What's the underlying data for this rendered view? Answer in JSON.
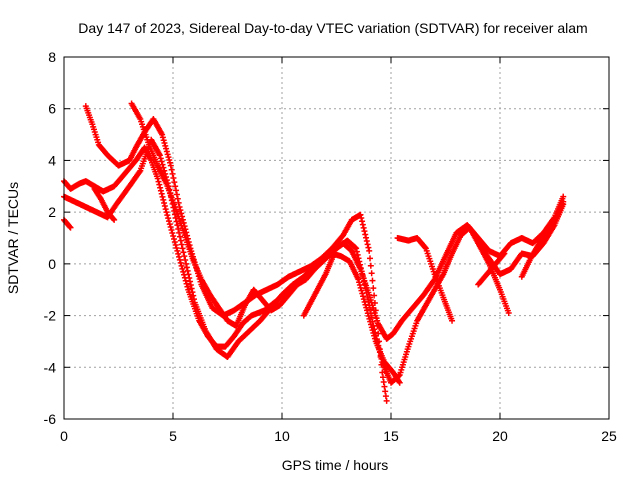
{
  "chart_data": {
    "type": "scatter",
    "title": "Day 147 of 2023, Sidereal Day-to-day VTEC variation (SDTVAR) for receiver alam",
    "xlabel": "GPS time / hours",
    "ylabel": "SDTVAR / TECUs",
    "xlim": [
      0,
      25
    ],
    "ylim": [
      -6,
      8
    ],
    "xticks": [
      0,
      5,
      10,
      15,
      20,
      25
    ],
    "yticks": [
      -6,
      -4,
      -2,
      0,
      2,
      4,
      6,
      8
    ],
    "grid": true,
    "marker": "+",
    "color": "#ff0000",
    "series": [
      {
        "x": [
          0.0,
          0.3,
          0.7,
          1.0,
          1.4,
          1.8,
          2.3,
          2.8,
          3.3,
          3.7,
          4.0,
          4.3,
          4.7,
          5.2,
          5.7,
          6.2,
          6.6,
          7.0,
          7.4,
          7.8,
          8.2,
          8.6,
          9.2,
          9.8,
          10.4,
          11.0,
          11.6,
          12.2,
          12.8,
          13.2,
          13.6,
          14.0,
          14.4,
          14.8,
          15.1,
          15.5,
          16.0,
          16.5,
          17.0,
          17.5,
          18.0,
          18.5,
          19.0,
          19.5,
          20.0,
          20.5,
          21.0,
          21.5,
          22.0,
          22.5,
          22.9
        ],
        "y": [
          3.2,
          2.9,
          3.1,
          3.2,
          3.0,
          2.8,
          3.0,
          3.5,
          4.0,
          4.5,
          4.0,
          3.3,
          2.0,
          0.5,
          -1.0,
          -2.2,
          -2.8,
          -3.2,
          -3.2,
          -2.8,
          -2.3,
          -2.0,
          -1.8,
          -1.4,
          -0.9,
          -0.5,
          0.0,
          0.4,
          0.8,
          0.5,
          -0.2,
          -1.2,
          -2.3,
          -2.9,
          -2.7,
          -2.2,
          -1.7,
          -1.2,
          -0.6,
          0.3,
          1.2,
          1.5,
          1.0,
          0.5,
          0.3,
          0.8,
          1.0,
          0.8,
          1.2,
          1.8,
          2.6
        ]
      },
      {
        "x": [
          0.0,
          0.5,
          1.0,
          1.5,
          2.0,
          2.4,
          3.0,
          3.5,
          4.0,
          4.4,
          4.8,
          5.2,
          5.6,
          6.0,
          6.5,
          7.0,
          7.5,
          8.0,
          8.5,
          9.0,
          9.5,
          10.0,
          10.5,
          11.0,
          11.5,
          12.0,
          12.5,
          13.0,
          13.4,
          13.8,
          14.2,
          14.6,
          15.0,
          15.4,
          15.8,
          16.2,
          16.6,
          17.0,
          17.4,
          17.8,
          18.2,
          18.6,
          19.0,
          19.5,
          20.0,
          20.5,
          21.0,
          21.5,
          22.0,
          22.5,
          22.9
        ],
        "y": [
          2.6,
          2.4,
          2.2,
          2.0,
          1.8,
          2.3,
          3.0,
          3.6,
          4.8,
          4.2,
          3.0,
          1.5,
          0.0,
          -1.5,
          -2.6,
          -3.3,
          -3.6,
          -3.0,
          -2.6,
          -2.2,
          -1.7,
          -1.2,
          -0.8,
          -0.5,
          -0.2,
          0.2,
          0.6,
          0.9,
          0.6,
          -0.8,
          -2.4,
          -3.8,
          -4.6,
          -4.3,
          -3.2,
          -2.2,
          -1.6,
          -1.0,
          -0.4,
          0.4,
          1.1,
          1.4,
          0.8,
          0.2,
          -0.4,
          -0.2,
          0.4,
          0.3,
          0.8,
          1.5,
          2.3
        ]
      },
      {
        "x": [
          1.0,
          1.3,
          1.6,
          2.0,
          2.5,
          3.0,
          3.3,
          3.7,
          4.1,
          4.5,
          4.9,
          5.3,
          5.8,
          6.3,
          6.8,
          7.3,
          7.8,
          8.3,
          8.8,
          9.3,
          9.8,
          10.3,
          10.8,
          11.3,
          11.8,
          12.3,
          12.8,
          13.2,
          13.6,
          14.0,
          14.3,
          14.6,
          14.8
        ],
        "y": [
          6.1,
          5.4,
          4.6,
          4.2,
          3.8,
          4.0,
          4.5,
          5.1,
          5.6,
          5.0,
          3.8,
          2.2,
          0.6,
          -0.8,
          -1.7,
          -2.0,
          -1.8,
          -1.5,
          -1.2,
          -1.0,
          -0.8,
          -0.5,
          -0.3,
          -0.1,
          0.2,
          0.6,
          1.1,
          1.7,
          1.9,
          0.5,
          -1.8,
          -4.2,
          -5.3
        ]
      },
      {
        "x": [
          3.1,
          3.5,
          3.9,
          4.3,
          4.7,
          5.1,
          5.5,
          5.9,
          6.3,
          6.7,
          7.1,
          7.5,
          7.9,
          8.3,
          8.7,
          9.1,
          9.5,
          9.9,
          10.3,
          10.7,
          11.1,
          11.5,
          11.9,
          12.3,
          12.7,
          13.1,
          13.5,
          13.9,
          14.3,
          14.7,
          15.1,
          15.4
        ],
        "y": [
          6.2,
          5.6,
          4.6,
          3.8,
          3.1,
          2.2,
          1.2,
          0.2,
          -0.6,
          -1.2,
          -1.7,
          -2.2,
          -2.4,
          -1.6,
          -1.0,
          -1.4,
          -1.8,
          -1.6,
          -1.2,
          -0.8,
          -0.6,
          -0.2,
          0.2,
          0.4,
          0.3,
          0.1,
          -0.6,
          -1.8,
          -3.0,
          -3.8,
          -4.2,
          -4.6
        ]
      },
      {
        "x": [
          0.0,
          0.3
        ],
        "y": [
          1.7,
          1.4
        ]
      },
      {
        "x": [
          15.3,
          15.8,
          16.2,
          16.6,
          17.0,
          17.4,
          17.8
        ],
        "y": [
          1.0,
          0.9,
          1.0,
          0.6,
          -0.4,
          -1.3,
          -2.2
        ]
      },
      {
        "x": [
          11.0,
          11.5,
          12.0,
          12.4
        ],
        "y": [
          -2.0,
          -1.2,
          -0.4,
          0.4
        ]
      },
      {
        "x": [
          19.0,
          19.5,
          20.0,
          20.4
        ],
        "y": [
          0.8,
          0.0,
          -1.0,
          -1.9
        ]
      },
      {
        "x": [
          21.0,
          21.4,
          21.8,
          22.2,
          22.6,
          22.9
        ],
        "y": [
          -0.5,
          0.2,
          0.8,
          1.3,
          1.8,
          2.4
        ]
      },
      {
        "x": [
          19.0,
          19.4,
          19.8,
          20.2
        ],
        "y": [
          -0.8,
          -0.4,
          0.0,
          0.4
        ]
      },
      {
        "x": [
          1.4,
          1.7,
          2.0,
          2.3
        ],
        "y": [
          2.9,
          2.5,
          2.0,
          1.7
        ]
      }
    ]
  }
}
